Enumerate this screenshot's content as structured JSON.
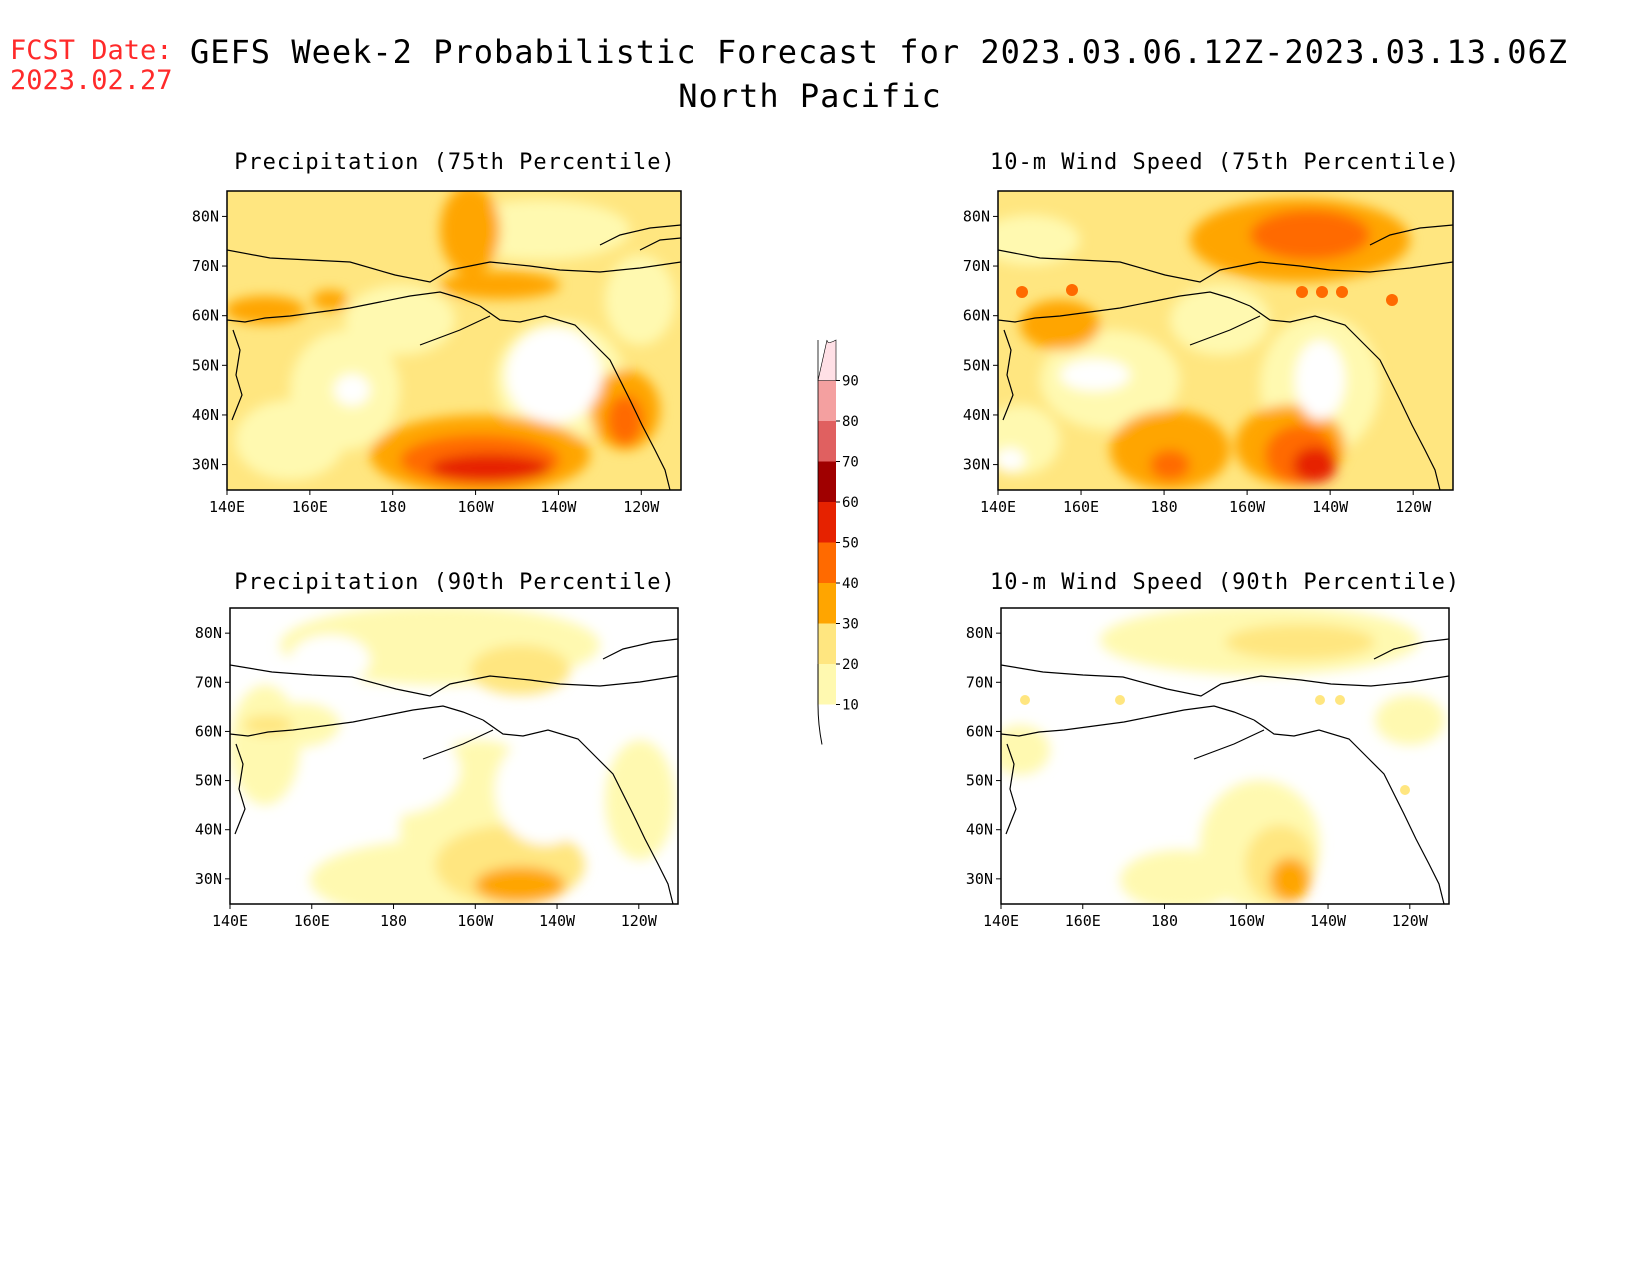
{
  "header": {
    "fcst_date_label": "FCST Date:",
    "fcst_date_value": "2023.02.27",
    "title_line1": "GEFS Week-2 Probabilistic Forecast for 2023.03.06.12Z-2023.03.13.06Z",
    "title_line2": "North Pacific"
  },
  "axes": {
    "x_ticks": [
      "140E",
      "160E",
      "180",
      "160W",
      "140W",
      "120W"
    ],
    "y_ticks": [
      "80N",
      "70N",
      "60N",
      "50N",
      "40N",
      "30N"
    ]
  },
  "panels": [
    {
      "title": "Precipitation (75th Percentile)"
    },
    {
      "title": "10-m Wind Speed (75th Percentile)"
    },
    {
      "title": "Precipitation (90th Percentile)"
    },
    {
      "title": "10-m Wind Speed (90th Percentile)"
    }
  ],
  "colorbar": {
    "labels": [
      "10",
      "20",
      "30",
      "40",
      "50",
      "60",
      "70",
      "80",
      "90"
    ],
    "colors": [
      "#fff9b0",
      "#ffe680",
      "#ffa500",
      "#ff6a00",
      "#e62200",
      "#a00000",
      "#e06060",
      "#f4a0a0",
      "#ffe0e6"
    ]
  },
  "colors": {
    "fcst_label": "#ff2a2a",
    "land_outline": "#000000"
  }
}
